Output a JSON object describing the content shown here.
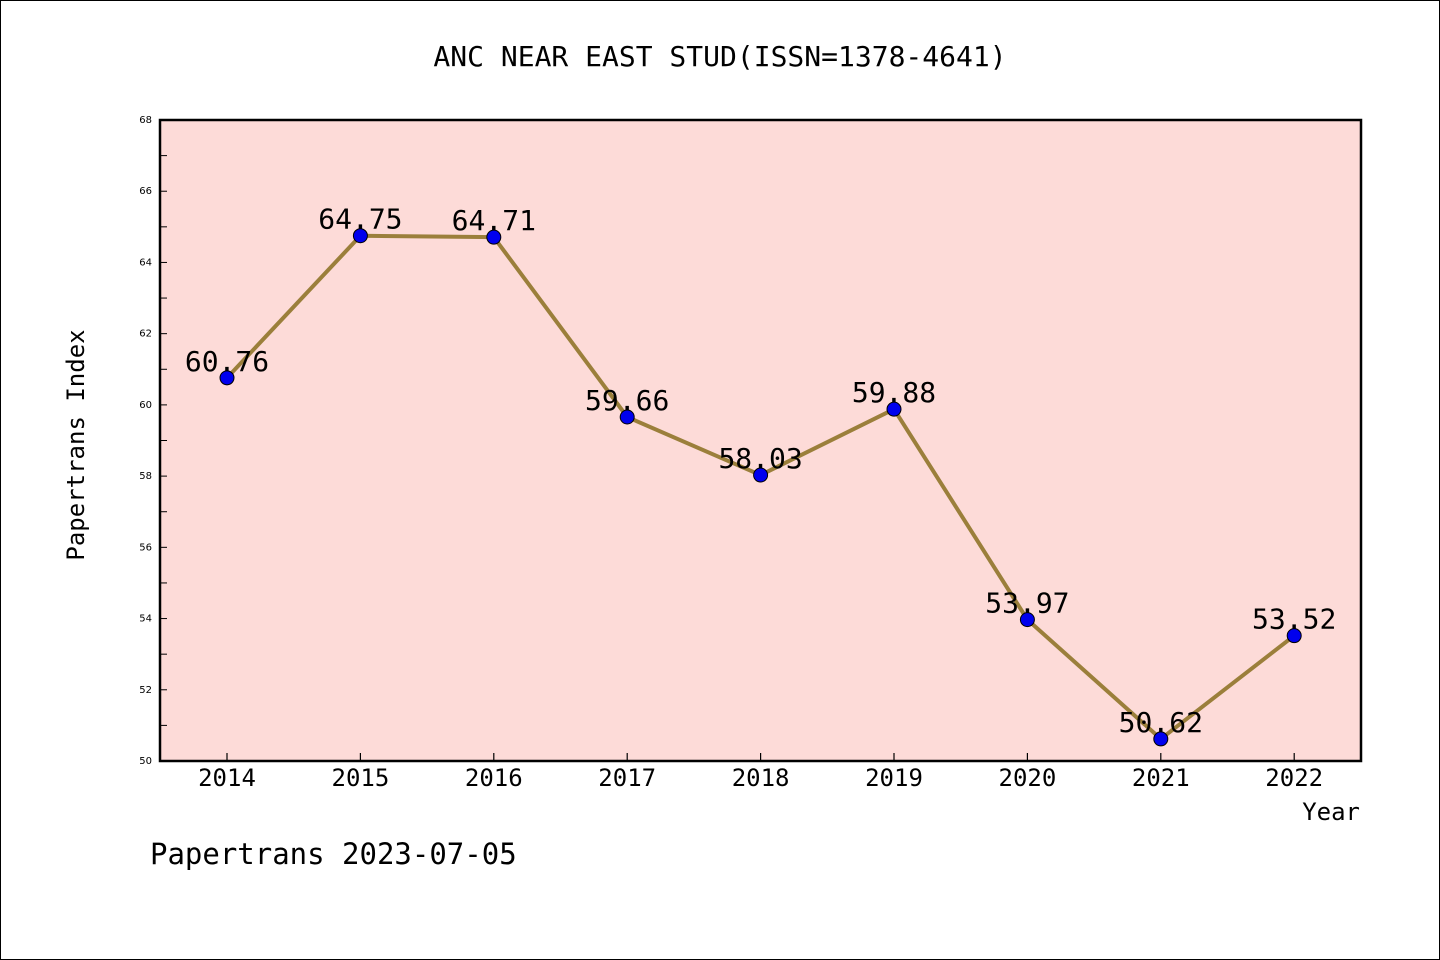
{
  "chart_data": {
    "type": "line",
    "title": "ANC NEAR EAST STUD(ISSN=1378-4641)",
    "xlabel": "Year",
    "ylabel": "Papertrans Index",
    "categories": [
      "2014",
      "2015",
      "2016",
      "2017",
      "2018",
      "2019",
      "2020",
      "2021",
      "2022"
    ],
    "series": [
      {
        "values": [
          60.76,
          64.75,
          64.71,
          59.66,
          58.03,
          59.88,
          53.97,
          50.62,
          53.52
        ],
        "data_labels": [
          "60.76",
          "64.75",
          "64.71",
          "59.66",
          "58.03",
          "59.88",
          "53.97",
          "50.62",
          "53.52"
        ]
      }
    ],
    "ylim": [
      50,
      68
    ],
    "yticks": [
      50,
      52,
      54,
      56,
      58,
      60,
      62,
      64,
      66,
      68
    ],
    "grid": false,
    "legend": "none",
    "colors": {
      "plot_background": "#fddbd8",
      "line": "#9b7f3b",
      "marker": "#0000ee",
      "axes": "#000000"
    }
  },
  "footer": "Papertrans 2023-07-05"
}
